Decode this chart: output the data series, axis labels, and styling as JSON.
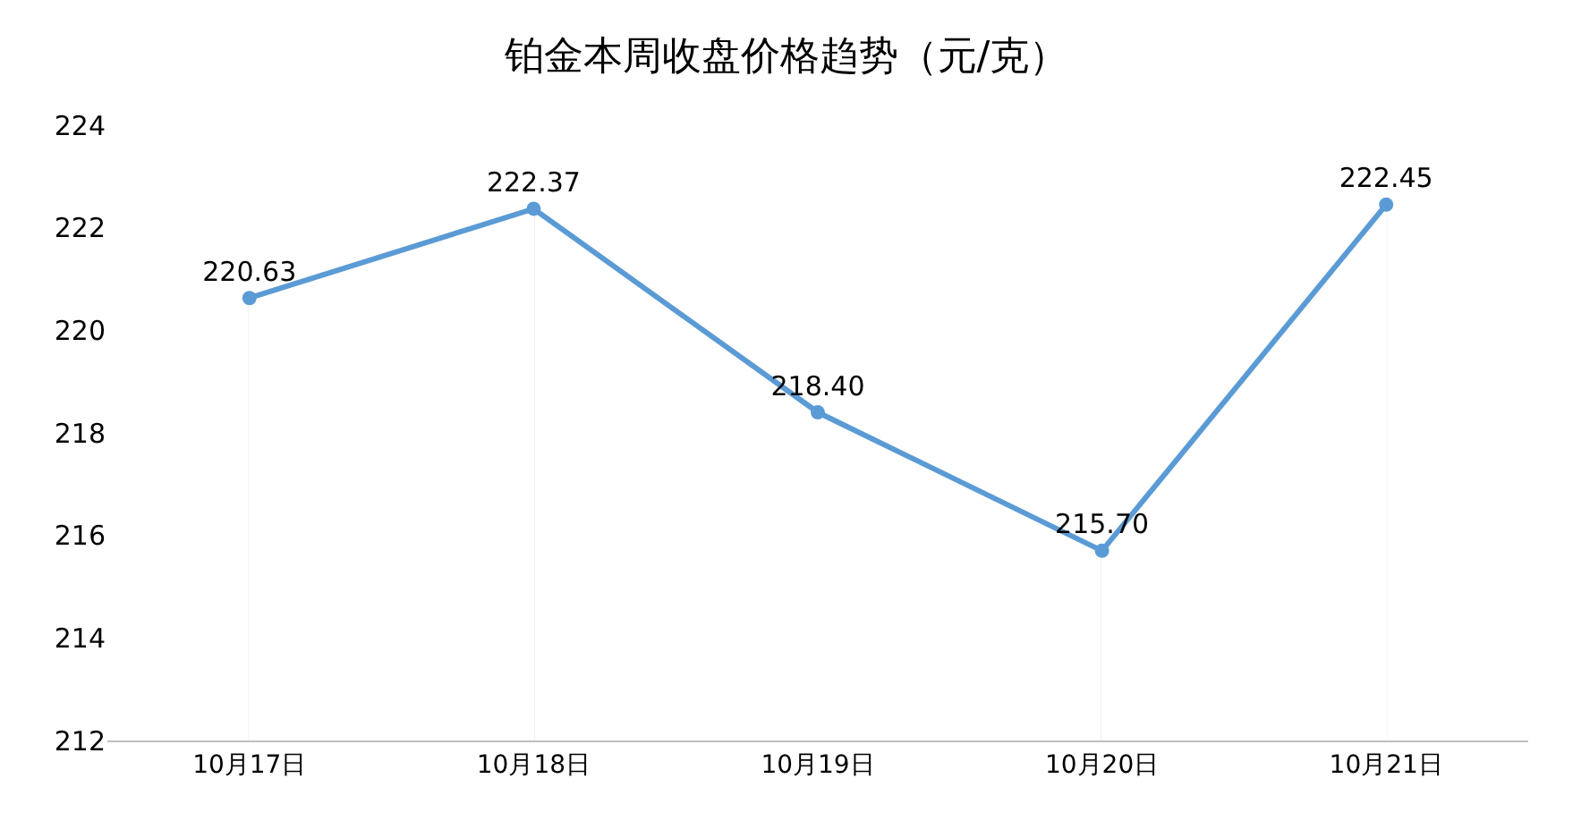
{
  "chart_data": {
    "type": "line",
    "title": "铂金本周收盘价格趋势（元/克）",
    "categories": [
      "10月17日",
      "10月18日",
      "10月19日",
      "10月20日",
      "10月21日"
    ],
    "series": [
      {
        "color": "#5b9bd5",
        "values": [
          220.63,
          222.37,
          218.4,
          215.7,
          222.45
        ],
        "value_labels": [
          "220.63",
          "222.37",
          "218.40",
          "215.70",
          "222.45"
        ]
      }
    ],
    "ylim": [
      212,
      224
    ],
    "yticks": [
      212,
      214,
      216,
      218,
      220,
      222,
      224
    ],
    "grid": "x",
    "legend": false,
    "marker": "circle",
    "line_style": "solid"
  }
}
